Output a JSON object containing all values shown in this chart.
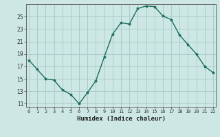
{
  "x": [
    0,
    1,
    2,
    3,
    4,
    5,
    6,
    7,
    8,
    9,
    10,
    11,
    12,
    13,
    14,
    15,
    16,
    17,
    18,
    19,
    20,
    21,
    22
  ],
  "y": [
    18.0,
    16.5,
    15.0,
    14.8,
    13.2,
    12.5,
    11.0,
    12.8,
    14.7,
    18.5,
    22.2,
    24.0,
    23.8,
    26.3,
    26.7,
    26.6,
    25.1,
    24.5,
    22.0,
    20.5,
    19.0,
    17.0,
    16.0
  ],
  "line_color": "#1a6b5a",
  "marker": "*",
  "marker_size": 3,
  "bg_color": "#cde8e4",
  "grid_color": "#aaccc8",
  "axis_color": "#666666",
  "xlabel": "Humidex (Indice chaleur)",
  "ylim": [
    10.5,
    27.0
  ],
  "yticks": [
    11,
    13,
    15,
    17,
    19,
    21,
    23,
    25
  ],
  "xticks": [
    0,
    1,
    2,
    3,
    4,
    5,
    6,
    7,
    8,
    9,
    10,
    11,
    12,
    13,
    14,
    15,
    16,
    17,
    18,
    19,
    20,
    21,
    22
  ],
  "xlim": [
    -0.3,
    22.3
  ]
}
